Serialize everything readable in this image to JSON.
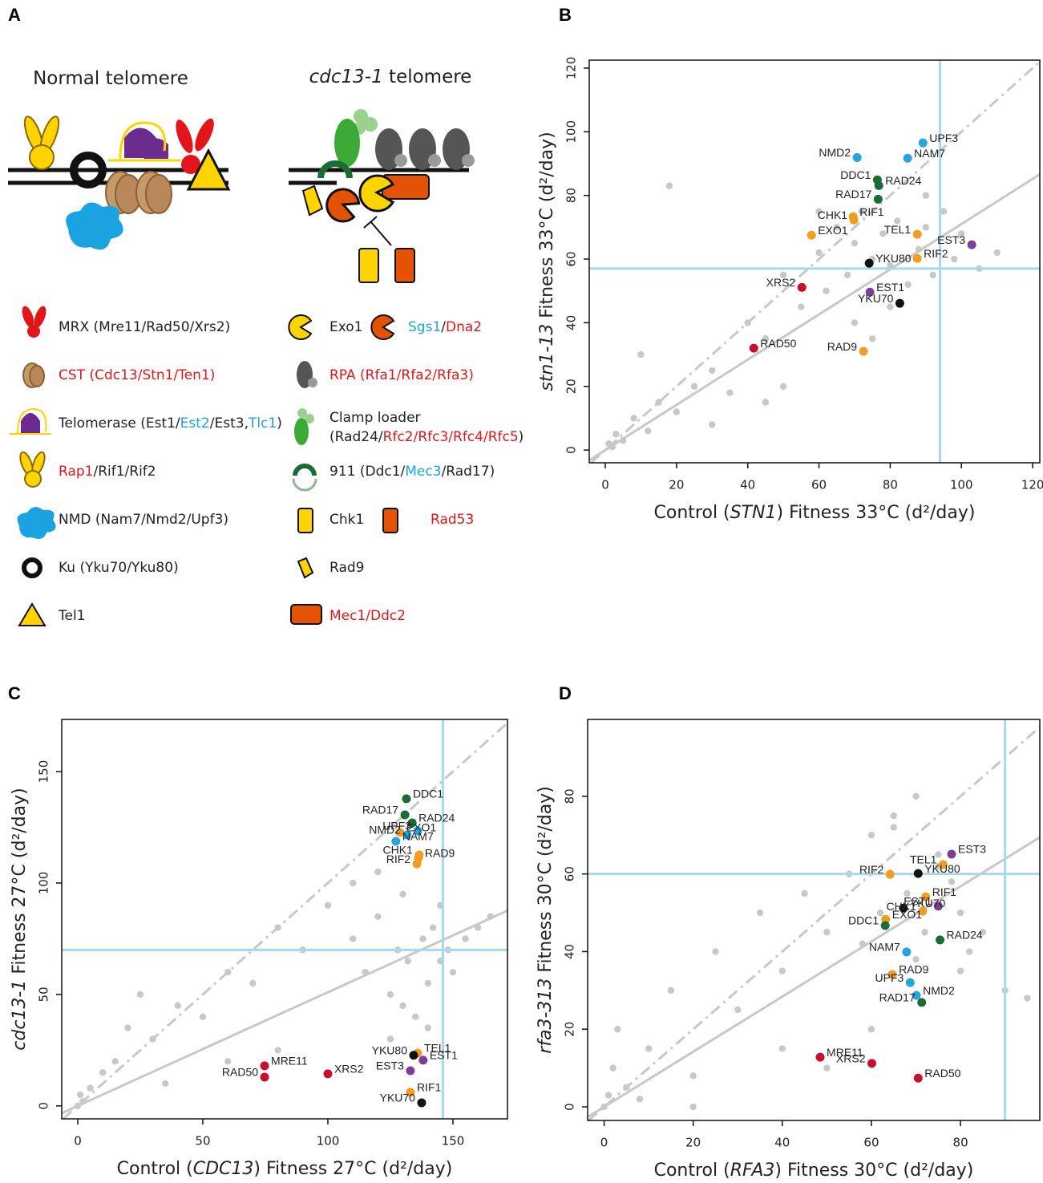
{
  "diagram": {
    "panel": "A",
    "headings": [
      [
        {
          "text": "Normal telomere"
        }
      ],
      [
        {
          "text": "cdc13-1",
          "italic": true
        },
        {
          "text": " telomere"
        }
      ]
    ],
    "legend": [
      {
        "lines": [
          [
            {
              "text": "MRX (Mre11/Rad50/Xrs2)"
            }
          ]
        ]
      },
      {
        "lines": [
          [
            {
              "text": "CST (Cdc13/Stn1/Ten1)",
              "color": "#e0161b"
            }
          ]
        ]
      },
      {
        "lines": [
          [
            {
              "text": "Telomerase (Est1/"
            },
            {
              "text": "Est2",
              "color": "#1aa3e0"
            },
            {
              "text": "/Est3,"
            },
            {
              "text": "Tlc1",
              "color": "#1aa3e0"
            },
            {
              "text": ")"
            }
          ]
        ]
      },
      {
        "lines": [
          [
            {
              "text": "Rap1",
              "color": "#e0161b"
            },
            {
              "text": "/Rif1/Rif2"
            }
          ]
        ]
      },
      {
        "lines": [
          [
            {
              "text": "NMD (Nam7/Nmd2/Upf3)"
            }
          ]
        ]
      },
      {
        "lines": [
          [
            {
              "text": "Ku (Yku70/Yku80)"
            }
          ]
        ]
      },
      {
        "lines": [
          [
            {
              "text": "Tel1"
            }
          ]
        ]
      },
      {
        "lines": [
          [
            {
              "text": "Exo1"
            }
          ]
        ]
      },
      {
        "lines": [
          [
            {
              "text": "Sgs1",
              "color": "#1aa3e0"
            },
            {
              "text": "/"
            },
            {
              "text": "Dna2",
              "color": "#e0161b"
            }
          ]
        ]
      },
      {
        "lines": [
          [
            {
              "text": "RPA (Rfa1/Rfa2/Rfa3)",
              "color": "#e0161b"
            }
          ]
        ]
      },
      {
        "lines": [
          [
            {
              "text": "Clamp loader"
            }
          ],
          [
            {
              "text": "(Rad24/"
            },
            {
              "text": "Rfc2/Rfc3/Rfc4/Rfc5",
              "color": "#e0161b"
            },
            {
              "text": ")"
            }
          ]
        ]
      },
      {
        "lines": [
          [
            {
              "text": "911 (Ddc1/"
            },
            {
              "text": "Mec3",
              "color": "#1aa3e0"
            },
            {
              "text": "/Rad17)"
            }
          ]
        ]
      },
      {
        "lines": [
          [
            {
              "text": "Chk1"
            }
          ]
        ]
      },
      {
        "lines": [
          [
            {
              "text": "Rad53",
              "color": "#e0161b"
            }
          ]
        ]
      },
      {
        "lines": [
          [
            {
              "text": "Rad9"
            }
          ]
        ]
      },
      {
        "lines": [
          [
            {
              "text": "Mec1/Ddc2",
              "color": "#e0161b"
            }
          ]
        ]
      }
    ]
  },
  "chart_data": [
    {
      "type": "scatter",
      "panel": "B",
      "x_label": [
        {
          "text": "Control ("
        },
        {
          "text": "STN1",
          "italic": true
        },
        {
          "text": ") Fitness 33°C (d²/day)"
        }
      ],
      "y_label": [
        {
          "text": "stn1-13",
          "italic": true
        },
        {
          "text": " Fitness 33°C (d²/day)"
        }
      ],
      "xlim": [
        -4.5,
        122
      ],
      "ylim": [
        -4,
        122.5
      ],
      "xticks": [
        0,
        20,
        40,
        60,
        80,
        100,
        120
      ],
      "yticks": [
        0,
        20,
        40,
        60,
        80,
        100,
        120
      ],
      "vline": 94,
      "hline": 57,
      "ref_color": "#a8d8ec",
      "fit_slope": 0.71,
      "fit_color": "#c8c8c8",
      "identity_line": true,
      "background": {
        "color": "#c8c8c8",
        "x": [
          1,
          2,
          3,
          5,
          8,
          12,
          15,
          20,
          25,
          30,
          35,
          40,
          45,
          50,
          55,
          60,
          62,
          65,
          68,
          70,
          72,
          75,
          78,
          80,
          82,
          85,
          88,
          90,
          92,
          95,
          98,
          100,
          105,
          110,
          60,
          70,
          80,
          90,
          10,
          30,
          50,
          18,
          45,
          75
        ],
        "y": [
          2,
          1,
          5,
          3,
          10,
          6,
          15,
          12,
          20,
          25,
          18,
          40,
          35,
          55,
          45,
          62,
          50,
          70,
          55,
          65,
          75,
          60,
          68,
          58,
          72,
          52,
          63,
          70,
          55,
          75,
          60,
          68,
          57,
          62,
          75,
          40,
          45,
          80,
          30,
          8,
          20,
          83,
          15,
          35
        ]
      },
      "points": [
        {
          "label": "UPF3",
          "color": "#29a3dd",
          "x": 89.2,
          "y": 96.5
        },
        {
          "label": "NMD2",
          "color": "#29a3dd",
          "x": 70.7,
          "y": 91.9
        },
        {
          "label": "NAM7",
          "color": "#29a3dd",
          "x": 84.9,
          "y": 91.7
        },
        {
          "label": "DDC1",
          "color": "#1a6b35",
          "x": 76.4,
          "y": 84.9
        },
        {
          "label": "RAD24",
          "color": "#1a6b35",
          "x": 76.8,
          "y": 83.1
        },
        {
          "label": "RAD17",
          "color": "#1a6b35",
          "x": 76.6,
          "y": 78.8
        },
        {
          "label": "RIF1",
          "color": "#f39c1e",
          "x": 69.6,
          "y": 73.3
        },
        {
          "label": "CHK1",
          "color": "#f39c1e",
          "x": 69.8,
          "y": 72.3
        },
        {
          "label": "EXO1",
          "color": "#f39c1e",
          "x": 57.9,
          "y": 67.5
        },
        {
          "label": "TEL1",
          "color": "#f39c1e",
          "x": 87.6,
          "y": 67.8
        },
        {
          "label": "RIF2",
          "color": "#f39c1e",
          "x": 87.6,
          "y": 60.2
        },
        {
          "label": "EST3",
          "color": "#7b3f98",
          "x": 102.9,
          "y": 64.5
        },
        {
          "label": "YKU80",
          "color": "#111111",
          "x": 74.1,
          "y": 58.7
        },
        {
          "label": "XRS2",
          "color": "#c8102e",
          "x": 55.2,
          "y": 51.1
        },
        {
          "label": "EST1",
          "color": "#7b3f98",
          "x": 74.3,
          "y": 49.6
        },
        {
          "label": "YKU70",
          "color": "#111111",
          "x": 82.7,
          "y": 46.1
        },
        {
          "label": "RAD50",
          "color": "#c8102e",
          "x": 41.7,
          "y": 32.0
        },
        {
          "label": "RAD9",
          "color": "#f39c1e",
          "x": 72.5,
          "y": 31.0
        }
      ]
    },
    {
      "type": "scatter",
      "panel": "C",
      "x_label": [
        {
          "text": "Control ("
        },
        {
          "text": "CDC13",
          "italic": true
        },
        {
          "text": ") Fitness 27°C (d²/day)"
        }
      ],
      "y_label": [
        {
          "text": "cdc13-1",
          "italic": true
        },
        {
          "text": " Fitness 27°C (d²/day)"
        }
      ],
      "xlim": [
        -6.4,
        171.8
      ],
      "ylim": [
        -5.8,
        173.4
      ],
      "xticks": [
        0,
        50,
        100,
        150
      ],
      "yticks": [
        0,
        50,
        100,
        150
      ],
      "vline": 146,
      "hline": 70,
      "ref_color": "#a8d8ec",
      "fit_slope": 0.51,
      "fit_color": "#c8c8c8",
      "identity_line": true,
      "background": {
        "color": "#c8c8c8",
        "x": [
          0,
          1,
          2,
          5,
          10,
          15,
          20,
          30,
          40,
          50,
          60,
          70,
          80,
          90,
          100,
          110,
          115,
          120,
          125,
          128,
          130,
          132,
          135,
          138,
          140,
          142,
          145,
          148,
          150,
          155,
          160,
          165,
          125,
          130,
          140,
          145,
          60,
          80,
          35,
          25,
          110,
          120
        ],
        "y": [
          0,
          5,
          2,
          8,
          15,
          20,
          35,
          30,
          45,
          40,
          60,
          55,
          80,
          70,
          90,
          75,
          60,
          85,
          50,
          70,
          95,
          65,
          40,
          75,
          55,
          80,
          65,
          70,
          60,
          75,
          80,
          85,
          30,
          45,
          35,
          90,
          20,
          25,
          10,
          50,
          100,
          105
        ]
      },
      "points": [
        {
          "label": "DDC1",
          "color": "#1a6b35",
          "x": 131.4,
          "y": 137.8
        },
        {
          "label": "RAD17",
          "color": "#1a6b35",
          "x": 130.8,
          "y": 130.6
        },
        {
          "label": "RAD24",
          "color": "#1a6b35",
          "x": 133.7,
          "y": 127.0
        },
        {
          "label": "UPF3",
          "color": "#29a3dd",
          "x": 135.9,
          "y": 123.4
        },
        {
          "label": "EXO1",
          "color": "#f39c1e",
          "x": 128.8,
          "y": 122.7
        },
        {
          "label": "NMD2",
          "color": "#29a3dd",
          "x": 131.7,
          "y": 121.6
        },
        {
          "label": "NAM7",
          "color": "#29a3dd",
          "x": 127.2,
          "y": 118.7
        },
        {
          "label": "CHK1",
          "color": "#f39c1e",
          "x": 136.5,
          "y": 112.6
        },
        {
          "label": "RAD9",
          "color": "#f39c1e",
          "x": 136.2,
          "y": 111.2
        },
        {
          "label": "RIF2",
          "color": "#f39c1e",
          "x": 135.6,
          "y": 108.6
        },
        {
          "label": "TEL1",
          "color": "#f39c1e",
          "x": 135.9,
          "y": 23.7
        },
        {
          "label": "YKU80",
          "color": "#111111",
          "x": 134.3,
          "y": 22.7
        },
        {
          "label": "EST1",
          "color": "#7b3f98",
          "x": 138.1,
          "y": 20.5
        },
        {
          "label": "EST3",
          "color": "#7b3f98",
          "x": 133.0,
          "y": 15.8
        },
        {
          "label": "RIF1",
          "color": "#f39c1e",
          "x": 133.0,
          "y": 6.1
        },
        {
          "label": "YKU70",
          "color": "#111111",
          "x": 137.5,
          "y": 1.4
        },
        {
          "label": "MRE11",
          "color": "#c8102e",
          "x": 74.7,
          "y": 18.0
        },
        {
          "label": "RAD50",
          "color": "#c8102e",
          "x": 74.7,
          "y": 12.9
        },
        {
          "label": "XRS2",
          "color": "#c8102e",
          "x": 100.0,
          "y": 14.4
        }
      ]
    },
    {
      "type": "scatter",
      "panel": "D",
      "x_label": [
        {
          "text": "Control ("
        },
        {
          "text": "RFA3",
          "italic": true
        },
        {
          "text": ") Fitness 30°C  (d²/day)"
        }
      ],
      "y_label": [
        {
          "text": "rfa3-313",
          "italic": true
        },
        {
          "text": " Fitness 30°C  (d²/day)"
        }
      ],
      "xlim": [
        -3.7,
        97.8
      ],
      "ylim": [
        -3.5,
        99.8
      ],
      "xticks": [
        0,
        20,
        40,
        60,
        80
      ],
      "yticks": [
        0,
        20,
        40,
        60,
        80
      ],
      "vline": 90,
      "hline": 60,
      "ref_color": "#a8d8ec",
      "fit_slope": 0.71,
      "fit_color": "#c8c8c8",
      "identity_line": true,
      "background": {
        "color": "#c8c8c8",
        "x": [
          0,
          1,
          2,
          3,
          5,
          8,
          10,
          15,
          20,
          25,
          30,
          35,
          40,
          45,
          50,
          55,
          58,
          60,
          62,
          65,
          68,
          70,
          72,
          75,
          78,
          80,
          82,
          85,
          90,
          95,
          60,
          70,
          75,
          20,
          40,
          50,
          65,
          80
        ],
        "y": [
          0,
          3,
          10,
          20,
          5,
          2,
          15,
          30,
          8,
          40,
          25,
          50,
          35,
          55,
          45,
          60,
          42,
          70,
          50,
          75,
          55,
          80,
          45,
          62,
          58,
          50,
          40,
          45,
          30,
          28,
          20,
          38,
          65,
          0,
          15,
          10,
          72,
          35
        ]
      },
      "points": [
        {
          "label": "EST3",
          "color": "#7b3f98",
          "x": 78.0,
          "y": 65.1
        },
        {
          "label": "TEL1",
          "color": "#f39c1e",
          "x": 76.1,
          "y": 62.4
        },
        {
          "label": "YKU80",
          "color": "#111111",
          "x": 70.5,
          "y": 60.1
        },
        {
          "label": "RIF2",
          "color": "#f39c1e",
          "x": 64.2,
          "y": 59.9
        },
        {
          "label": "RIF1",
          "color": "#f39c1e",
          "x": 72.2,
          "y": 54.1
        },
        {
          "label": "EST1",
          "color": "#7b3f98",
          "x": 75.0,
          "y": 51.7
        },
        {
          "label": "YKU70",
          "color": "#111111",
          "x": 67.2,
          "y": 51.2
        },
        {
          "label": "CHK1",
          "color": "#f39c1e",
          "x": 71.5,
          "y": 50.4
        },
        {
          "label": "EXO1",
          "color": "#f39c1e",
          "x": 63.2,
          "y": 48.3
        },
        {
          "label": "DDC1",
          "color": "#1a6b35",
          "x": 63.1,
          "y": 46.7
        },
        {
          "label": "RAD24",
          "color": "#1a6b35",
          "x": 75.4,
          "y": 43.0
        },
        {
          "label": "NAM7",
          "color": "#29a3dd",
          "x": 67.9,
          "y": 39.9
        },
        {
          "label": "RAD9",
          "color": "#f39c1e",
          "x": 64.7,
          "y": 34.1
        },
        {
          "label": "UPF3",
          "color": "#29a3dd",
          "x": 68.7,
          "y": 32.0
        },
        {
          "label": "NMD2",
          "color": "#29a3dd",
          "x": 70.1,
          "y": 28.7
        },
        {
          "label": "RAD17",
          "color": "#1a6b35",
          "x": 71.3,
          "y": 26.9
        },
        {
          "label": "MRE11",
          "color": "#c8102e",
          "x": 48.5,
          "y": 12.8
        },
        {
          "label": "XRS2",
          "color": "#c8102e",
          "x": 60.1,
          "y": 11.2
        },
        {
          "label": "RAD50",
          "color": "#c8102e",
          "x": 70.5,
          "y": 7.4
        }
      ]
    }
  ]
}
